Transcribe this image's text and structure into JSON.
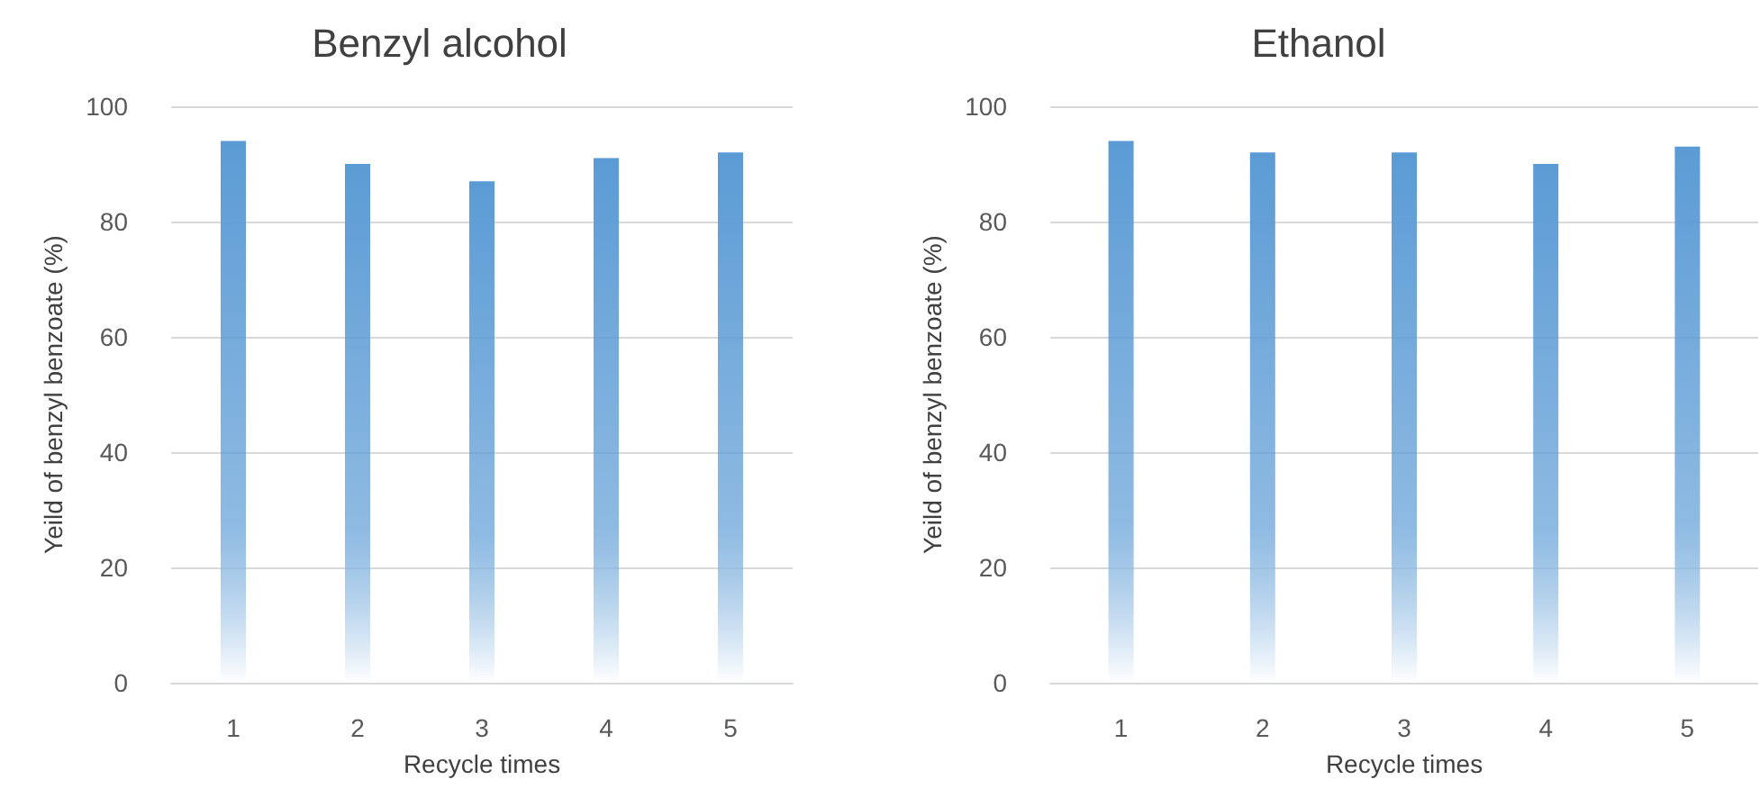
{
  "chart_data": [
    {
      "type": "bar",
      "title": "Benzyl alcohol",
      "xlabel": "Recycle times",
      "ylabel": "Yeild of benzyl benzoate (%)",
      "categories": [
        "1",
        "2",
        "3",
        "4",
        "5"
      ],
      "values": [
        94,
        90,
        87,
        91,
        92
      ],
      "color": "#5b9bd5",
      "ylim": [
        0,
        100
      ],
      "yticks": [
        0,
        20,
        40,
        60,
        80,
        100
      ],
      "grid": "y"
    },
    {
      "type": "bar",
      "title": "Ethanol",
      "xlabel": "Recycle times",
      "ylabel": "Yeild of benzyl benzoate (%)",
      "categories": [
        "1",
        "2",
        "3",
        "4",
        "5"
      ],
      "values": [
        94,
        92,
        92,
        90,
        93
      ],
      "color": "#5b9bd5",
      "ylim": [
        0,
        100
      ],
      "yticks": [
        0,
        20,
        40,
        60,
        80,
        100
      ],
      "grid": "y"
    }
  ]
}
